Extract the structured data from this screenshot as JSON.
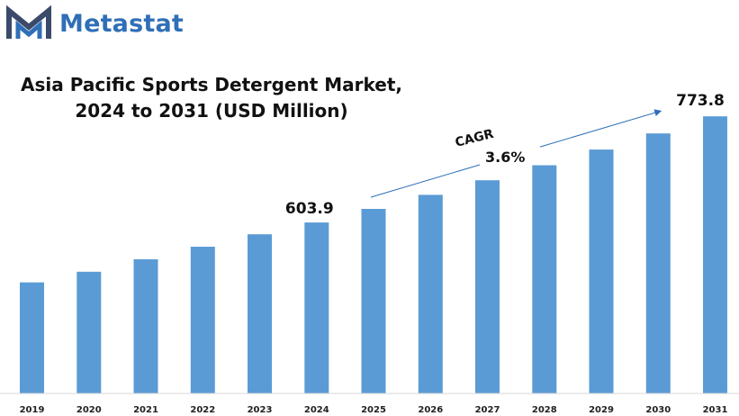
{
  "brand": {
    "name": "Metastat",
    "color": "#2f6fb7"
  },
  "chart_data": {
    "type": "bar",
    "title_line1": "Asia Pacific Sports Detergent Market,",
    "title_line2": "2024 to 2031 (USD Million)",
    "categories": [
      "2019",
      "2020",
      "2021",
      "2022",
      "2023",
      "2024",
      "2025",
      "2026",
      "2027",
      "2028",
      "2029",
      "2030",
      "2031"
    ],
    "values": [
      508,
      525,
      545,
      565,
      585,
      603.9,
      625.6,
      648.1,
      671.4,
      695.6,
      720.6,
      746.5,
      773.8
    ],
    "data_labels": [
      {
        "category": "2024",
        "text": "603.9"
      },
      {
        "category": "2031",
        "text": "773.8"
      }
    ],
    "annotation": {
      "label": "CAGR",
      "value": "3.6%",
      "from": "2025",
      "to": "2030"
    },
    "bar_color": "#5b9bd5",
    "axis_color": "#d9d9d9",
    "xlabel": "",
    "ylabel": "",
    "ylim": [
      330,
      790
    ],
    "grid": false,
    "legend": "none"
  }
}
